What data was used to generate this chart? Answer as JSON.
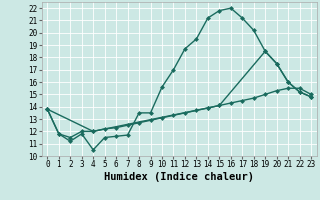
{
  "xlabel": "Humidex (Indice chaleur)",
  "xlim": [
    -0.5,
    23.5
  ],
  "ylim": [
    10,
    22.5
  ],
  "yticks": [
    10,
    11,
    12,
    13,
    14,
    15,
    16,
    17,
    18,
    19,
    20,
    21,
    22
  ],
  "xticks": [
    0,
    1,
    2,
    3,
    4,
    5,
    6,
    7,
    8,
    9,
    10,
    11,
    12,
    13,
    14,
    15,
    16,
    17,
    18,
    19,
    20,
    21,
    22,
    23
  ],
  "background_color": "#cce8e4",
  "grid_color": "#ffffff",
  "line_color": "#1a6b5e",
  "line1_x": [
    0,
    1,
    2,
    3,
    4,
    5,
    6,
    7,
    8,
    9,
    10,
    11,
    12,
    13,
    14,
    15,
    16,
    17,
    18,
    19,
    20,
    21,
    22,
    23
  ],
  "line1_y": [
    13.8,
    11.8,
    11.2,
    11.8,
    10.5,
    11.5,
    11.6,
    11.7,
    13.5,
    13.5,
    15.6,
    17.0,
    18.7,
    19.5,
    21.2,
    21.8,
    22.0,
    21.2,
    20.2,
    18.5,
    17.5,
    16.0,
    15.2,
    14.8
  ],
  "line2_x": [
    0,
    1,
    2,
    3,
    4,
    5,
    6,
    7,
    8,
    9,
    10,
    11,
    12,
    13,
    14,
    15,
    16,
    17,
    18,
    19,
    20,
    21,
    22,
    23
  ],
  "line2_y": [
    13.8,
    11.8,
    11.5,
    12.0,
    12.0,
    12.2,
    12.3,
    12.5,
    12.7,
    12.9,
    13.1,
    13.3,
    13.5,
    13.7,
    13.9,
    14.1,
    14.3,
    14.5,
    14.7,
    15.0,
    15.3,
    15.5,
    15.5,
    15.0
  ],
  "line3_x": [
    0,
    4,
    14,
    15,
    19,
    20,
    21,
    22,
    23
  ],
  "line3_y": [
    13.8,
    12.0,
    13.9,
    14.1,
    18.5,
    17.5,
    16.0,
    15.2,
    14.8
  ],
  "markersize": 2.5,
  "linewidth": 1.0,
  "tick_fontsize": 5.5,
  "xlabel_fontsize": 7.5
}
